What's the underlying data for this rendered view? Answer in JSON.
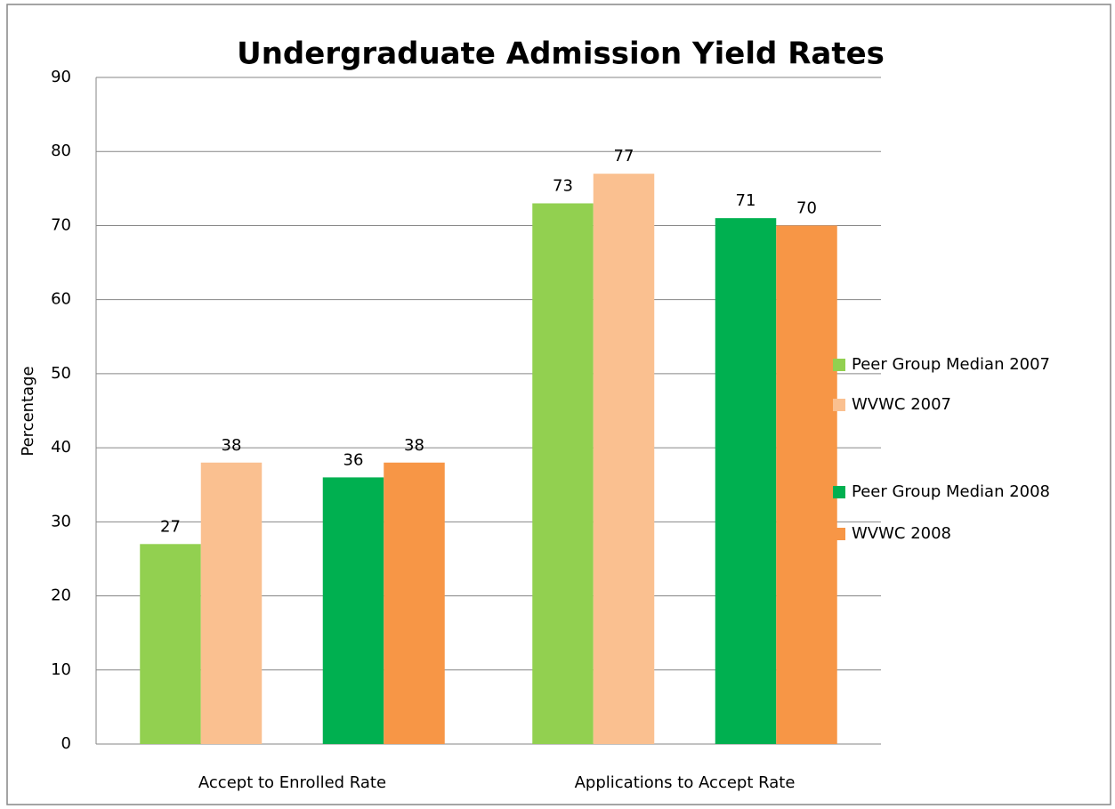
{
  "chart_data": {
    "type": "bar",
    "title": "Undergraduate Admission Yield Rates",
    "ylabel": "Percentage",
    "categories": [
      "Accept to Enrolled Rate",
      "Applications to Accept Rate"
    ],
    "series": [
      {
        "name": "Peer Group Median 2007",
        "color": "#92d050",
        "values": [
          27,
          73
        ]
      },
      {
        "name": "WVWC 2007",
        "color": "#fac090",
        "values": [
          38,
          77
        ]
      },
      {
        "name": "Peer Group Median 2008",
        "color": "#00b050",
        "values": [
          36,
          71
        ]
      },
      {
        "name": "WVWC 2008",
        "color": "#f79646",
        "values": [
          38,
          70
        ]
      }
    ],
    "ylim": [
      0,
      90
    ],
    "yticks": [
      0,
      10,
      20,
      30,
      40,
      50,
      60,
      70,
      80,
      90
    ],
    "grid": true,
    "legend": "right"
  }
}
